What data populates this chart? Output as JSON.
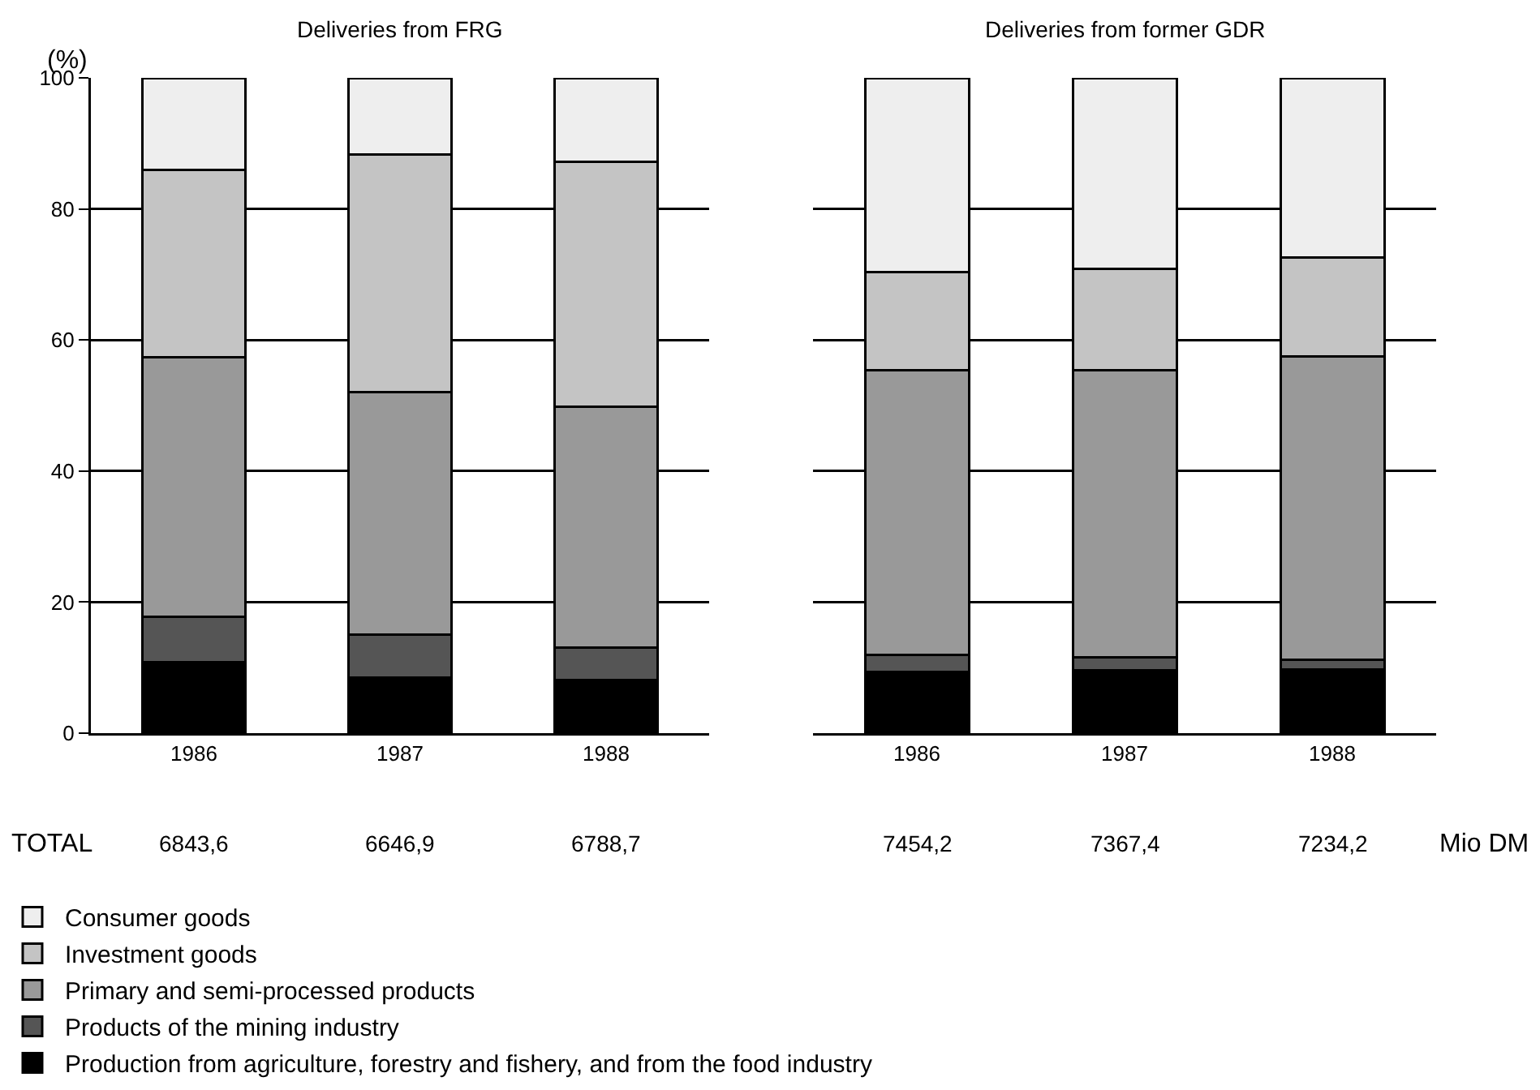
{
  "chart_data": [
    {
      "type": "bar",
      "title": "Deliveries from FRG",
      "ylabel": "(%)",
      "categories": [
        "1986",
        "1987",
        "1988"
      ],
      "stacked": true,
      "ylim": [
        0,
        100
      ],
      "yticks": [
        0,
        20,
        40,
        60,
        80,
        100
      ],
      "grid": "y",
      "legend": "bottom",
      "series": [
        {
          "name": "Production from agriculture, forestry and fishery, and from the food industry",
          "color": "#000000",
          "values": [
            10.8,
            8.5,
            8.1
          ]
        },
        {
          "name": "Products of the mining industry",
          "color": "#555555",
          "values": [
            6.9,
            6.6,
            5.0
          ]
        },
        {
          "name": "Primary and semi-processed products",
          "color": "#999999",
          "values": [
            39.7,
            37.0,
            36.7
          ]
        },
        {
          "name": "Investment goods",
          "color": "#c4c4c4",
          "values": [
            28.5,
            36.2,
            37.4
          ]
        },
        {
          "name": "Consumer goods",
          "color": "#eeeeee",
          "values": [
            14.1,
            11.7,
            12.8
          ]
        }
      ],
      "annotations": [
        "TOTAL",
        "6843,6",
        "6646,9",
        "6788,7"
      ]
    },
    {
      "type": "bar",
      "title": "Deliveries from former GDR",
      "categories": [
        "1986",
        "1987",
        "1988"
      ],
      "stacked": true,
      "ylim": [
        0,
        100
      ],
      "yticks": [
        0,
        20,
        40,
        60,
        80,
        100
      ],
      "grid": "y",
      "tick_labels": "x",
      "series": [
        {
          "color": "#000000",
          "values": [
            9.3,
            9.6,
            9.7
          ]
        },
        {
          "color": "#555555",
          "values": [
            2.6,
            2.0,
            1.5
          ]
        },
        {
          "color": "#999999",
          "values": [
            43.5,
            43.8,
            46.3
          ]
        },
        {
          "color": "#c4c4c4",
          "values": [
            14.9,
            15.5,
            15.1
          ]
        },
        {
          "color": "#eeeeee",
          "values": [
            29.7,
            29.1,
            27.4
          ]
        }
      ],
      "annotations": [
        "7454,2",
        "7367,4",
        "7234,2",
        "Mio DM"
      ]
    }
  ]
}
